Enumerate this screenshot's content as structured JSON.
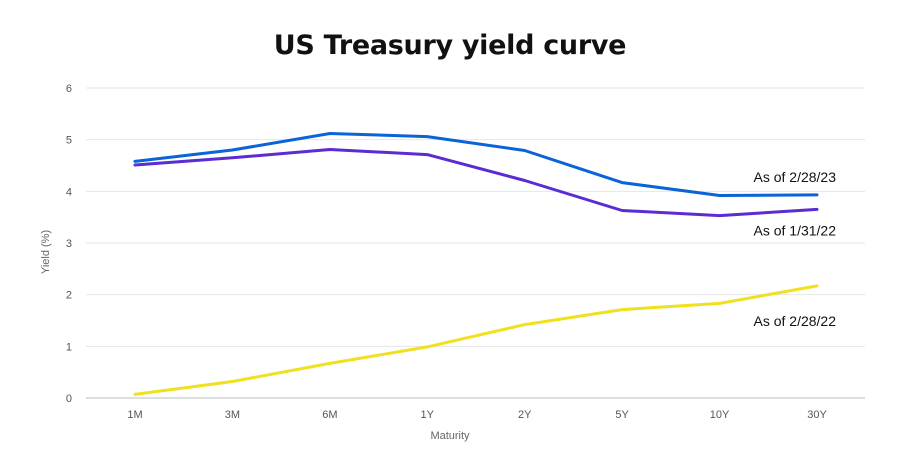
{
  "chart_data": {
    "type": "line",
    "title": "US Treasury yield curve",
    "xlabel": "Maturity",
    "ylabel": "Yield (%)",
    "categories": [
      "1M",
      "3M",
      "6M",
      "1Y",
      "2Y",
      "5Y",
      "10Y",
      "30Y"
    ],
    "ylim": [
      0,
      6
    ],
    "yticks": [
      "0",
      "1",
      "2",
      "3",
      "4",
      "5",
      "6"
    ],
    "grid": true,
    "series": [
      {
        "name": "As of 2/28/23",
        "color": "#0a63d8",
        "values": [
          4.58,
          4.8,
          5.12,
          5.06,
          4.79,
          4.17,
          3.92,
          3.93
        ]
      },
      {
        "name": "As of 1/31/22",
        "color": "#5b2bd3",
        "values": [
          4.51,
          4.65,
          4.81,
          4.71,
          4.21,
          3.63,
          3.53,
          3.65
        ]
      },
      {
        "name": "As of 2/28/22",
        "color": "#f0e020",
        "values": [
          0.07,
          0.32,
          0.67,
          0.99,
          1.42,
          1.71,
          1.83,
          2.17
        ]
      }
    ]
  }
}
